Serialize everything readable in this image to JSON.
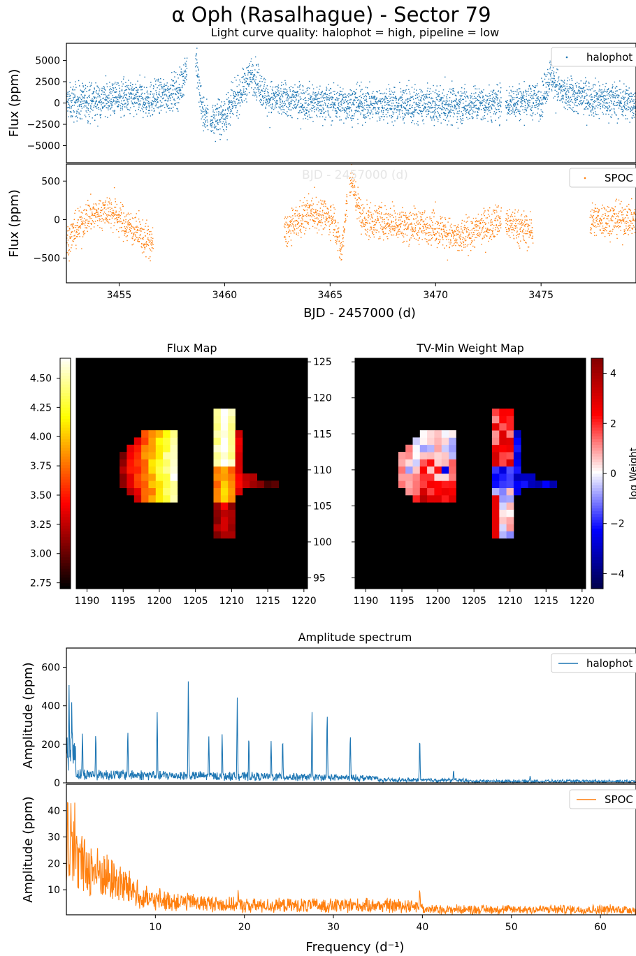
{
  "title": "α Oph (Rasalhague) - Sector 79",
  "subtitle": "Light curve quality: halophot = high, pipeline = low",
  "colors": {
    "halophot": "#1f77b4",
    "spoc": "#ff7f0e"
  },
  "chart_data": [
    {
      "type": "scatter",
      "id": "lc_halophot",
      "ylabel": "Flux (ppm)",
      "xlim": [
        3452.5,
        3479.5
      ],
      "ylim": [
        -7000,
        7000
      ],
      "yticks": [
        -5000,
        -2500,
        0,
        2500,
        5000
      ],
      "ytick_labels": [
        "−5000",
        "−2500",
        "0",
        "2500",
        "5000"
      ],
      "legend": {
        "label": "halophot",
        "loc": "upper right"
      },
      "segments": [
        [
          3452.5,
          3458.2
        ],
        [
          3458.6,
          3459.2
        ],
        [
          3459.3,
          3473.1
        ],
        [
          3473.3,
          3479.5
        ]
      ],
      "key_points": [
        [
          3452.6,
          0
        ],
        [
          3455.0,
          600
        ],
        [
          3456.5,
          400
        ],
        [
          3457.8,
          1500
        ],
        [
          3458.3,
          5000
        ],
        [
          3458.55,
          6500
        ],
        [
          3458.9,
          -1000
        ],
        [
          3459.3,
          -2000
        ],
        [
          3460.0,
          -1500
        ],
        [
          3461.3,
          3500
        ],
        [
          3462.0,
          500
        ],
        [
          3465.0,
          0
        ],
        [
          3470.0,
          -300
        ],
        [
          3473.0,
          0
        ],
        [
          3475.0,
          400
        ],
        [
          3475.4,
          3200
        ],
        [
          3476.0,
          1000
        ],
        [
          3479.4,
          0
        ]
      ]
    },
    {
      "type": "scatter",
      "id": "lc_spoc",
      "ylabel": "Flux (ppm)",
      "xlabel": "BJD - 2457000 (d)",
      "ghost_label": "BJD - 2457000 (d)",
      "xlim": [
        3452.5,
        3479.5
      ],
      "ylim": [
        -820,
        720
      ],
      "yticks": [
        -500,
        0,
        500
      ],
      "ytick_labels": [
        "−500",
        "0",
        "500"
      ],
      "xticks": [
        3455,
        3460,
        3465,
        3470,
        3475
      ],
      "legend": {
        "label": "SPOC",
        "loc": "upper right"
      },
      "segments": [
        [
          3452.5,
          3456.6
        ],
        [
          3462.8,
          3465.8
        ],
        [
          3465.9,
          3473.1
        ],
        [
          3473.3,
          3474.6
        ],
        [
          3477.3,
          3479.5
        ]
      ],
      "key_points": [
        [
          3452.6,
          -250
        ],
        [
          3453.5,
          50
        ],
        [
          3454.5,
          120
        ],
        [
          3455.5,
          -100
        ],
        [
          3456.5,
          -300
        ],
        [
          3462.9,
          -150
        ],
        [
          3464.0,
          100
        ],
        [
          3465.2,
          0
        ],
        [
          3465.5,
          -450
        ],
        [
          3465.95,
          550
        ],
        [
          3466.5,
          0
        ],
        [
          3468.0,
          -50
        ],
        [
          3470.0,
          -100
        ],
        [
          3471.0,
          -250
        ],
        [
          3473.0,
          0
        ],
        [
          3474.5,
          -150
        ],
        [
          3477.5,
          0
        ],
        [
          3479.4,
          0
        ]
      ]
    },
    {
      "type": "heatmap",
      "id": "flux_map",
      "title": "Flux Map",
      "xlim": [
        1188.5,
        1220.5
      ],
      "ylim": [
        93.5,
        125.5
      ],
      "xticks": [
        1190,
        1195,
        1200,
        1205,
        1210,
        1215,
        1220
      ],
      "yticks": [
        95,
        100,
        105,
        110,
        115,
        120,
        125
      ],
      "colorbar": {
        "range": [
          2.7,
          4.67
        ],
        "ticks": [
          "2.75",
          "3.00",
          "3.25",
          "3.50",
          "3.75",
          "4.00",
          "4.25",
          "4.50"
        ],
        "tick_values": [
          2.75,
          3.0,
          3.25,
          3.5,
          3.75,
          4.0,
          4.25,
          4.5
        ],
        "colormap": "hot"
      }
    },
    {
      "type": "heatmap",
      "id": "weight_map",
      "title": "TV-Min Weight Map",
      "xlim": [
        1188.5,
        1220.5
      ],
      "ylim": [
        93.5,
        125.5
      ],
      "xticks": [
        1190,
        1195,
        1200,
        1205,
        1210,
        1215,
        1220
      ],
      "colorbar": {
        "range": [
          -4.6,
          4.6
        ],
        "ticks": [
          "−4",
          "−2",
          "0",
          "2",
          "4"
        ],
        "tick_values": [
          -4,
          -2,
          0,
          2,
          4
        ],
        "label": "log Weight",
        "colormap": "seismic"
      }
    },
    {
      "type": "line",
      "id": "spec_halophot",
      "title": "Amplitude spectrum",
      "ylabel": "Amplitude (ppm)",
      "xlim": [
        0,
        64
      ],
      "ylim": [
        0,
        700
      ],
      "yticks": [
        0,
        200,
        400,
        600
      ],
      "legend": {
        "label": "halophot",
        "loc": "upper right"
      },
      "peaks": [
        [
          0.3,
          510
        ],
        [
          0.6,
          420
        ],
        [
          1.0,
          210
        ],
        [
          1.8,
          260
        ],
        [
          3.3,
          260
        ],
        [
          6.9,
          270
        ],
        [
          10.2,
          365
        ],
        [
          13.7,
          530
        ],
        [
          16.0,
          240
        ],
        [
          17.5,
          255
        ],
        [
          19.2,
          440
        ],
        [
          20.5,
          240
        ],
        [
          23.0,
          220
        ],
        [
          24.3,
          230
        ],
        [
          27.6,
          370
        ],
        [
          29.3,
          355
        ],
        [
          31.9,
          250
        ],
        [
          39.7,
          230
        ],
        [
          43.5,
          65
        ],
        [
          52.1,
          40
        ]
      ]
    },
    {
      "type": "line",
      "id": "spec_spoc",
      "ylabel": "Amplitude (ppm)",
      "xlabel": "Frequency (d⁻¹)",
      "xlim": [
        0,
        64
      ],
      "ylim": [
        0.5,
        50
      ],
      "yticks": [
        10,
        20,
        30,
        40
      ],
      "xticks": [
        10,
        20,
        30,
        40,
        50,
        60
      ],
      "legend": {
        "label": "SPOC",
        "loc": "upper right"
      },
      "peaks": [
        [
          0.15,
          48
        ],
        [
          0.5,
          45
        ],
        [
          1.6,
          27
        ],
        [
          3.0,
          19
        ],
        [
          4.8,
          15
        ],
        [
          6.5,
          12
        ],
        [
          9.0,
          11
        ],
        [
          10.5,
          10.5
        ],
        [
          14.0,
          8
        ],
        [
          19.3,
          10
        ],
        [
          31.9,
          7
        ],
        [
          39.7,
          10.5
        ]
      ]
    }
  ]
}
